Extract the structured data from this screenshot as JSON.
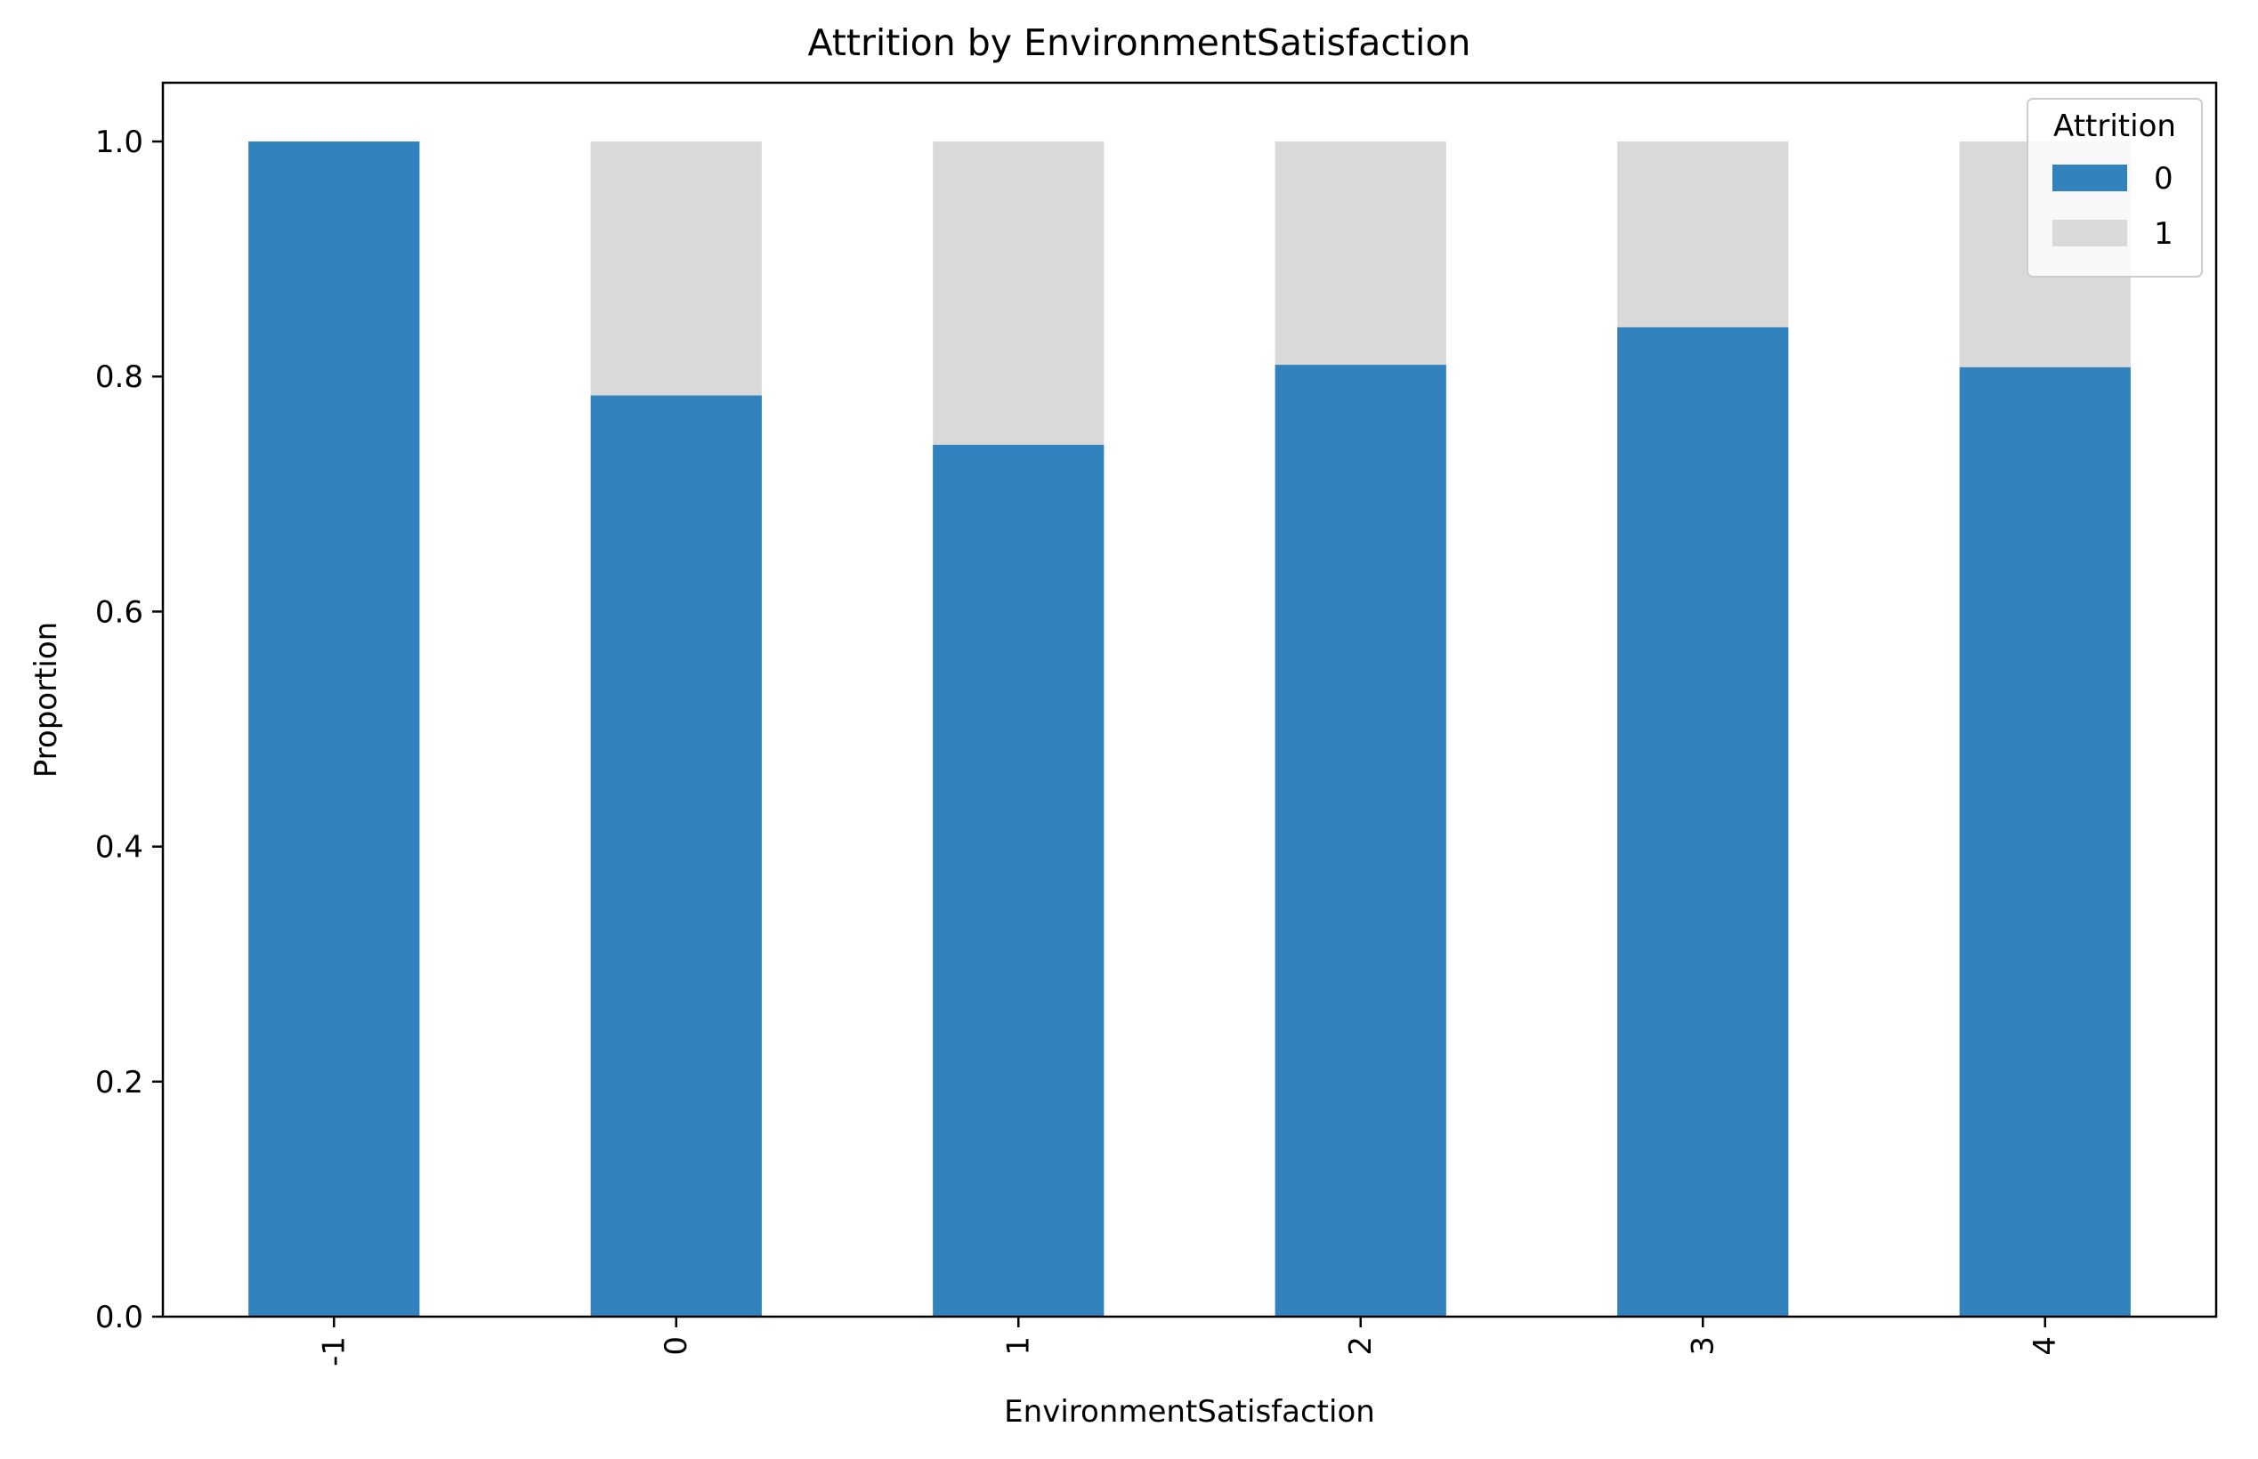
{
  "chart_data": {
    "type": "bar",
    "stacked": true,
    "title": "Attrition by EnvironmentSatisfaction",
    "xlabel": "EnvironmentSatisfaction",
    "ylabel": "Proportion",
    "categories": [
      "-1",
      "0",
      "1",
      "2",
      "3",
      "4"
    ],
    "series": [
      {
        "name": "0",
        "color": "#3282bd",
        "values": [
          1.0,
          0.784,
          0.742,
          0.81,
          0.842,
          0.808
        ]
      },
      {
        "name": "1",
        "color": "#d9d9d9",
        "values": [
          0.0,
          0.216,
          0.258,
          0.19,
          0.158,
          0.192
        ]
      }
    ],
    "ylim": [
      0,
      1.05
    ],
    "yticks": [
      0.0,
      0.2,
      0.4,
      0.6,
      0.8,
      1.0
    ],
    "ytick_labels": [
      "0.0",
      "0.2",
      "0.4",
      "0.6",
      "0.8",
      "1.0"
    ],
    "xtick_rotation": 90,
    "legend": {
      "title": "Attrition",
      "placement": "top-right"
    },
    "grid": false
  }
}
